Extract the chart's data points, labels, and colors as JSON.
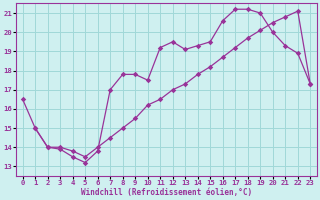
{
  "xlabel": "Windchill (Refroidissement éolien,°C)",
  "ylabel": "",
  "bg_color": "#cff0f0",
  "grid_color": "#a0d8d8",
  "line_color": "#993399",
  "xlim": [
    -0.5,
    23.5
  ],
  "ylim": [
    12.5,
    21.5
  ],
  "xticks": [
    0,
    1,
    2,
    3,
    4,
    5,
    6,
    7,
    8,
    9,
    10,
    11,
    12,
    13,
    14,
    15,
    16,
    17,
    18,
    19,
    20,
    21,
    22,
    23
  ],
  "yticks": [
    13,
    14,
    15,
    16,
    17,
    18,
    19,
    20,
    21
  ],
  "line1_x": [
    1,
    2,
    3,
    4,
    5,
    6,
    7,
    8,
    9,
    10,
    11,
    12,
    13,
    14,
    15,
    16,
    17,
    18,
    19,
    20,
    21,
    22,
    23
  ],
  "line1_y": [
    15.0,
    14.0,
    13.9,
    13.5,
    13.2,
    13.8,
    17.0,
    17.8,
    17.8,
    17.5,
    19.2,
    19.5,
    19.1,
    19.3,
    19.5,
    20.6,
    21.2,
    21.2,
    21.0,
    20.0,
    19.3,
    18.9,
    17.3
  ],
  "line2_x": [
    0,
    1,
    2,
    3,
    4,
    5,
    6,
    7,
    8,
    9,
    10,
    11,
    12,
    13,
    14,
    15,
    16,
    17,
    18,
    19,
    20,
    21,
    22,
    23
  ],
  "line2_y": [
    16.5,
    15.0,
    14.0,
    14.0,
    13.8,
    13.5,
    14.0,
    14.5,
    15.0,
    15.5,
    16.2,
    16.5,
    17.0,
    17.3,
    17.8,
    18.2,
    18.7,
    19.2,
    19.7,
    20.1,
    20.5,
    20.8,
    21.1,
    17.3
  ]
}
